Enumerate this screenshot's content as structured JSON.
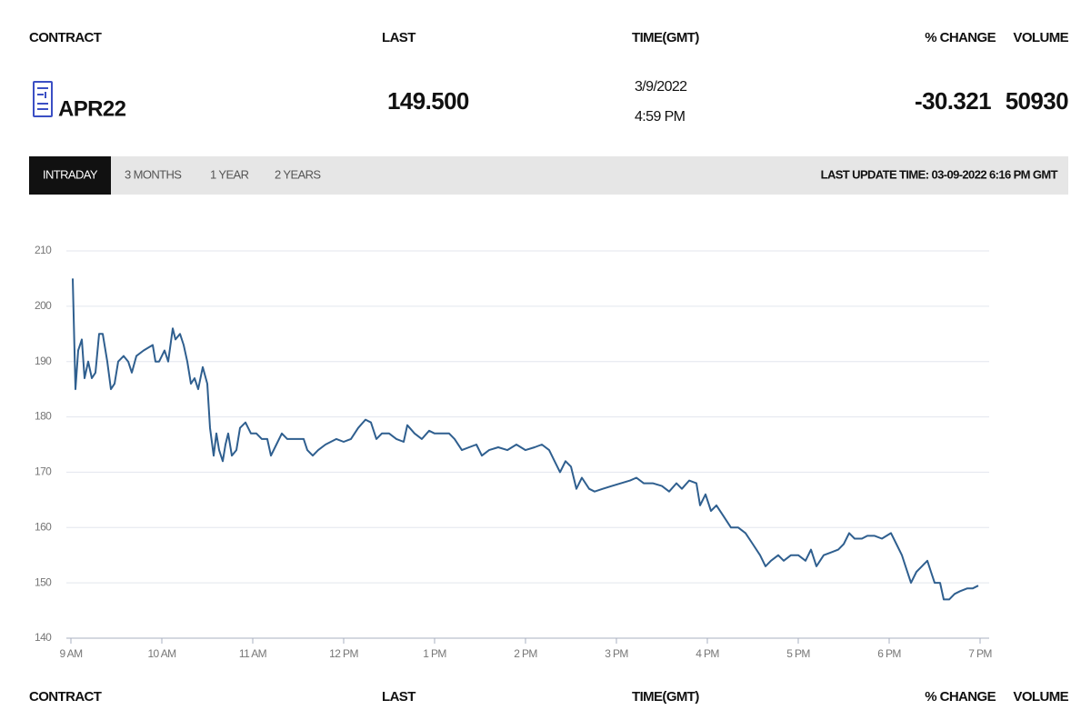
{
  "header": {
    "columns": [
      "CONTRACT",
      "LAST",
      "TIME(GMT)",
      "% CHANGE",
      "VOLUME"
    ]
  },
  "quote": {
    "contract": "APR22",
    "last": "149.500",
    "date": "3/9/2022",
    "time": "4:59 PM",
    "change": -30.321,
    "volume": 50930
  },
  "tabs": [
    "INTRADAY",
    "3 MONTHS",
    "1 YEAR",
    "2 YEARS"
  ],
  "active_tab": 0,
  "last_update": "LAST UPDATE TIME: 03-09-2022 6:16 PM GMT",
  "chart_data": {
    "type": "line",
    "color": "#2f5f8f",
    "grid": true,
    "xlim": [
      8.95,
      19.1
    ],
    "ylim": [
      140,
      210
    ],
    "xticks": [
      {
        "value": 9,
        "label": "9 AM"
      },
      {
        "value": 10,
        "label": "10 AM"
      },
      {
        "value": 11,
        "label": "11 AM"
      },
      {
        "value": 12,
        "label": "12 PM"
      },
      {
        "value": 13,
        "label": "1 PM"
      },
      {
        "value": 14,
        "label": "2 PM"
      },
      {
        "value": 15,
        "label": "3 PM"
      },
      {
        "value": 16,
        "label": "4 PM"
      },
      {
        "value": 17,
        "label": "5 PM"
      },
      {
        "value": 18,
        "label": "6 PM"
      },
      {
        "value": 19,
        "label": "7 PM"
      }
    ],
    "yticks": [
      140,
      150,
      160,
      170,
      180,
      190,
      200,
      210
    ],
    "x": [
      9.02,
      9.05,
      9.08,
      9.12,
      9.15,
      9.19,
      9.23,
      9.27,
      9.31,
      9.35,
      9.4,
      9.44,
      9.48,
      9.52,
      9.58,
      9.63,
      9.67,
      9.72,
      9.8,
      9.9,
      9.93,
      9.97,
      10.03,
      10.07,
      10.12,
      10.15,
      10.2,
      10.24,
      10.28,
      10.32,
      10.36,
      10.4,
      10.45,
      10.5,
      10.53,
      10.57,
      10.6,
      10.63,
      10.67,
      10.7,
      10.73,
      10.77,
      10.82,
      10.86,
      10.92,
      10.98,
      11.04,
      11.1,
      11.16,
      11.2,
      11.26,
      11.32,
      11.38,
      11.44,
      11.5,
      11.56,
      11.6,
      11.66,
      11.72,
      11.8,
      11.92,
      12.0,
      12.08,
      12.16,
      12.24,
      12.3,
      12.36,
      12.42,
      12.5,
      12.58,
      12.66,
      12.7,
      12.78,
      12.86,
      12.94,
      13.0,
      13.1,
      13.16,
      13.22,
      13.3,
      13.38,
      13.46,
      13.52,
      13.6,
      13.7,
      13.8,
      13.9,
      14.0,
      14.1,
      14.18,
      14.26,
      14.32,
      14.38,
      14.44,
      14.5,
      14.56,
      14.62,
      14.7,
      14.76,
      14.85,
      14.95,
      15.05,
      15.15,
      15.22,
      15.3,
      15.4,
      15.5,
      15.58,
      15.66,
      15.72,
      15.8,
      15.88,
      15.92,
      15.98,
      16.04,
      16.1,
      16.18,
      16.26,
      16.34,
      16.42,
      16.5,
      16.58,
      16.64,
      16.7,
      16.78,
      16.84,
      16.92,
      17.0,
      17.08,
      17.14,
      17.2,
      17.28,
      17.36,
      17.44,
      17.5,
      17.56,
      17.62,
      17.7,
      17.76,
      17.84,
      17.92,
      18.02,
      18.08,
      18.14,
      18.18,
      18.24,
      18.3,
      18.36,
      18.42,
      18.46,
      18.5,
      18.56,
      18.6,
      18.66,
      18.72,
      18.78,
      18.86,
      18.92,
      18.98
    ],
    "values": [
      205,
      185,
      192,
      194,
      187,
      190,
      187,
      188,
      195,
      195,
      190,
      185,
      186,
      190,
      191,
      190,
      188,
      191,
      192,
      193,
      190,
      190,
      192,
      190,
      196,
      194,
      195,
      193,
      190,
      186,
      187,
      185,
      189,
      186,
      178,
      173,
      177,
      174,
      172,
      175,
      177,
      173,
      174,
      178,
      179,
      177,
      177,
      176,
      176,
      173,
      175,
      177,
      176,
      176,
      176,
      176,
      174,
      173,
      174,
      175,
      176,
      175.5,
      176,
      178,
      179.5,
      179,
      176,
      177,
      177,
      176,
      175.5,
      178.5,
      177,
      176,
      177.5,
      177,
      177,
      177,
      176,
      174,
      174.5,
      175,
      173,
      174,
      174.5,
      174,
      175,
      174,
      174.5,
      175,
      174,
      172,
      170,
      172,
      171,
      167,
      169,
      167,
      166.5,
      167,
      167.5,
      168,
      168.5,
      169,
      168,
      168,
      167.5,
      166.5,
      168,
      167,
      168.5,
      168,
      164,
      166,
      163,
      164,
      162,
      160,
      160,
      159,
      157,
      155,
      153,
      154,
      155,
      154,
      155,
      155,
      154,
      156,
      153,
      155,
      155.5,
      156,
      157,
      159,
      158,
      158,
      158.5,
      158.5,
      158,
      159,
      157,
      155,
      153,
      150,
      152,
      153,
      154,
      152,
      150,
      150,
      147,
      147,
      148,
      148.5,
      149,
      149,
      149.5
    ]
  }
}
